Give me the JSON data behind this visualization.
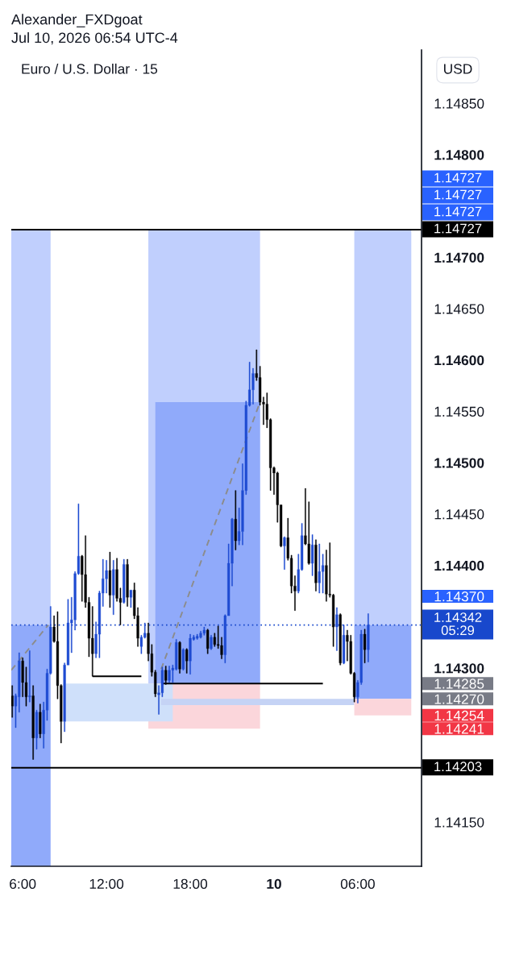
{
  "chart_data": {
    "type": "candlestick",
    "title": "Euro / U.S. Dollar · 15",
    "ylabel": "USD",
    "x": [
      "2026-07-09T05:15",
      "2026-07-09T05:30",
      "2026-07-09T05:45",
      "2026-07-09T06:00",
      "2026-07-09T06:15",
      "2026-07-09T06:30",
      "2026-07-09T06:45",
      "2026-07-09T07:00",
      "2026-07-09T07:15",
      "2026-07-09T07:30",
      "2026-07-09T07:45",
      "2026-07-09T08:00",
      "2026-07-09T08:15",
      "2026-07-09T08:30",
      "2026-07-09T08:45",
      "2026-07-09T09:00",
      "2026-07-09T09:15",
      "2026-07-09T09:30",
      "2026-07-09T09:45",
      "2026-07-09T10:00",
      "2026-07-09T10:15",
      "2026-07-09T10:30",
      "2026-07-09T10:45",
      "2026-07-09T11:00",
      "2026-07-09T11:15",
      "2026-07-09T11:30",
      "2026-07-09T11:45",
      "2026-07-09T12:00",
      "2026-07-09T12:15",
      "2026-07-09T12:30",
      "2026-07-09T12:45",
      "2026-07-09T13:00",
      "2026-07-09T13:15",
      "2026-07-09T13:30",
      "2026-07-09T13:45",
      "2026-07-09T14:00",
      "2026-07-09T14:15",
      "2026-07-09T14:30",
      "2026-07-09T14:45",
      "2026-07-09T15:00",
      "2026-07-09T15:15",
      "2026-07-09T15:30",
      "2026-07-09T15:45",
      "2026-07-09T16:00",
      "2026-07-09T16:15",
      "2026-07-09T16:30",
      "2026-07-09T16:45",
      "2026-07-09T17:00",
      "2026-07-09T17:15",
      "2026-07-09T17:30",
      "2026-07-09T17:45",
      "2026-07-09T18:00",
      "2026-07-09T18:15",
      "2026-07-09T18:30",
      "2026-07-09T18:45",
      "2026-07-09T19:00",
      "2026-07-09T19:15",
      "2026-07-09T19:30",
      "2026-07-09T19:45",
      "2026-07-09T20:00",
      "2026-07-09T20:15",
      "2026-07-09T20:30",
      "2026-07-09T20:45",
      "2026-07-09T21:00",
      "2026-07-09T21:15",
      "2026-07-09T21:30",
      "2026-07-09T21:45",
      "2026-07-09T22:00",
      "2026-07-09T22:15",
      "2026-07-09T22:30",
      "2026-07-09T22:45",
      "2026-07-09T23:00",
      "2026-07-09T23:15",
      "2026-07-09T23:30",
      "2026-07-09T23:45",
      "2026-07-10T00:00",
      "2026-07-10T00:15",
      "2026-07-10T00:30",
      "2026-07-10T00:45",
      "2026-07-10T01:00",
      "2026-07-10T01:15",
      "2026-07-10T01:30",
      "2026-07-10T01:45",
      "2026-07-10T02:00",
      "2026-07-10T02:15",
      "2026-07-10T02:30",
      "2026-07-10T02:45",
      "2026-07-10T03:00",
      "2026-07-10T03:15",
      "2026-07-10T03:30",
      "2026-07-10T03:45",
      "2026-07-10T04:00",
      "2026-07-10T04:15",
      "2026-07-10T04:30",
      "2026-07-10T04:45",
      "2026-07-10T05:00",
      "2026-07-10T05:15",
      "2026-07-10T05:30",
      "2026-07-10T05:45",
      "2026-07-10T06:00",
      "2026-07-10T06:15",
      "2026-07-10T06:30",
      "2026-07-10T06:45"
    ],
    "ohlc": [
      [
        1.14273,
        1.14283,
        1.14252,
        1.14263
      ],
      [
        1.14263,
        1.14275,
        1.14242,
        1.14273
      ],
      [
        1.14272,
        1.14315,
        1.14257,
        1.14307
      ],
      [
        1.14307,
        1.1431,
        1.14272,
        1.14286
      ],
      [
        1.14286,
        1.14301,
        1.14263,
        1.14272
      ],
      [
        1.14272,
        1.14317,
        1.14267,
        1.14273
      ],
      [
        1.14273,
        1.14283,
        1.14211,
        1.14232
      ],
      [
        1.14232,
        1.14259,
        1.14221,
        1.14257
      ],
      [
        1.14257,
        1.14265,
        1.14232,
        1.14236
      ],
      [
        1.14236,
        1.14267,
        1.14222,
        1.14259
      ],
      [
        1.14259,
        1.14299,
        1.14249,
        1.14295
      ],
      [
        1.14295,
        1.1436,
        1.14294,
        1.1434
      ],
      [
        1.1434,
        1.14351,
        1.14325,
        1.14326
      ],
      [
        1.14326,
        1.14355,
        1.1427,
        1.14283
      ],
      [
        1.14283,
        1.14284,
        1.14227,
        1.14248
      ],
      [
        1.14248,
        1.14305,
        1.14238,
        1.14303
      ],
      [
        1.14303,
        1.14367,
        1.14303,
        1.14344
      ],
      [
        1.14344,
        1.14369,
        1.14315,
        1.14347
      ],
      [
        1.14347,
        1.14394,
        1.14337,
        1.14392
      ],
      [
        1.14392,
        1.1446,
        1.14391,
        1.14409
      ],
      [
        1.14409,
        1.1441,
        1.14365,
        1.14391
      ],
      [
        1.14391,
        1.14429,
        1.14359,
        1.14364
      ],
      [
        1.14364,
        1.14369,
        1.14311,
        1.14329
      ],
      [
        1.14329,
        1.1436,
        1.14292,
        1.14314
      ],
      [
        1.14314,
        1.14345,
        1.1431,
        1.14333
      ],
      [
        1.14333,
        1.14375,
        1.1431,
        1.14373
      ],
      [
        1.14373,
        1.14406,
        1.1436,
        1.14387
      ],
      [
        1.14387,
        1.14405,
        1.14373,
        1.14395
      ],
      [
        1.14395,
        1.14413,
        1.14359,
        1.14371
      ],
      [
        1.14371,
        1.14405,
        1.14352,
        1.14396
      ],
      [
        1.14396,
        1.14407,
        1.14365,
        1.14368
      ],
      [
        1.14368,
        1.14378,
        1.14342,
        1.14364
      ],
      [
        1.14364,
        1.14406,
        1.14363,
        1.14401
      ],
      [
        1.14401,
        1.14406,
        1.1436,
        1.14369
      ],
      [
        1.14369,
        1.14376,
        1.14359,
        1.14376
      ],
      [
        1.14376,
        1.14383,
        1.14348,
        1.14351
      ],
      [
        1.14351,
        1.14359,
        1.14321,
        1.14329
      ],
      [
        1.14321,
        1.14332,
        1.14314,
        1.1433
      ],
      [
        1.1433,
        1.14344,
        1.14329,
        1.14334
      ],
      [
        1.14334,
        1.14344,
        1.14307,
        1.14314
      ],
      [
        1.14314,
        1.14323,
        1.14292,
        1.14296
      ],
      [
        1.14296,
        1.14298,
        1.14272,
        1.14275
      ],
      [
        1.14274,
        1.14283,
        1.14255,
        1.14276
      ],
      [
        1.14276,
        1.14301,
        1.14272,
        1.14298
      ],
      [
        1.14298,
        1.14302,
        1.14284,
        1.14288
      ],
      [
        1.14288,
        1.14302,
        1.14286,
        1.14298
      ],
      [
        1.14298,
        1.14303,
        1.14286,
        1.143
      ],
      [
        1.14299,
        1.14328,
        1.14298,
        1.14325
      ],
      [
        1.14325,
        1.14326,
        1.14295,
        1.14299
      ],
      [
        1.14299,
        1.14319,
        1.14298,
        1.14318
      ],
      [
        1.14318,
        1.14319,
        1.14295,
        1.14307
      ],
      [
        1.14307,
        1.14333,
        1.14294,
        1.14329
      ],
      [
        1.14328,
        1.14332,
        1.14327,
        1.1433
      ],
      [
        1.14329,
        1.14333,
        1.14328,
        1.14331
      ],
      [
        1.1433,
        1.14336,
        1.14329,
        1.14334
      ],
      [
        1.14334,
        1.1434,
        1.14332,
        1.14337
      ],
      [
        1.14337,
        1.14338,
        1.14314,
        1.14319
      ],
      [
        1.14319,
        1.14332,
        1.14318,
        1.1433
      ],
      [
        1.1433,
        1.14334,
        1.14321,
        1.14323
      ],
      [
        1.14323,
        1.14341,
        1.14319,
        1.14322
      ],
      [
        1.14322,
        1.1433,
        1.14309,
        1.14313
      ],
      [
        1.14313,
        1.14352,
        1.14305,
        1.14351
      ],
      [
        1.14351,
        1.14421,
        1.14351,
        1.14402
      ],
      [
        1.14402,
        1.14446,
        1.1438,
        1.14445
      ],
      [
        1.14445,
        1.14473,
        1.14415,
        1.14424
      ],
      [
        1.14424,
        1.14456,
        1.1442,
        1.14433
      ],
      [
        1.14433,
        1.14499,
        1.1442,
        1.14473
      ],
      [
        1.14473,
        1.1456,
        1.14469,
        1.14556
      ],
      [
        1.14556,
        1.14598,
        1.14555,
        1.14571
      ],
      [
        1.14571,
        1.14592,
        1.14557,
        1.14587
      ],
      [
        1.14587,
        1.1461,
        1.1458,
        1.14583
      ],
      [
        1.14583,
        1.14594,
        1.14556,
        1.14559
      ],
      [
        1.14559,
        1.14564,
        1.14537,
        1.14557
      ],
      [
        1.14557,
        1.14568,
        1.14534,
        1.14542
      ],
      [
        1.14542,
        1.14543,
        1.14473,
        1.14495
      ],
      [
        1.14495,
        1.14496,
        1.14469,
        1.1449
      ],
      [
        1.1449,
        1.14491,
        1.14442,
        1.14459
      ],
      [
        1.14459,
        1.14459,
        1.14418,
        1.14419
      ],
      [
        1.14419,
        1.14428,
        1.14396,
        1.14427
      ],
      [
        1.14427,
        1.14446,
        1.14405,
        1.14407
      ],
      [
        1.14407,
        1.1441,
        1.14373,
        1.1438
      ],
      [
        1.1438,
        1.1439,
        1.14356,
        1.14375
      ],
      [
        1.14375,
        1.14411,
        1.14373,
        1.14396
      ],
      [
        1.14396,
        1.14441,
        1.14395,
        1.14429
      ],
      [
        1.14429,
        1.14475,
        1.1442,
        1.14421
      ],
      [
        1.14421,
        1.14462,
        1.14401,
        1.14402
      ],
      [
        1.14402,
        1.1443,
        1.1439,
        1.1442
      ],
      [
        1.1442,
        1.14425,
        1.14375,
        1.14383
      ],
      [
        1.14383,
        1.14421,
        1.14373,
        1.14394
      ],
      [
        1.14394,
        1.14411,
        1.14373,
        1.144
      ],
      [
        1.144,
        1.14415,
        1.14365,
        1.14372
      ],
      [
        1.14372,
        1.14422,
        1.14369,
        1.14371
      ],
      [
        1.14371,
        1.14372,
        1.14321,
        1.1434
      ],
      [
        1.1434,
        1.14359,
        1.14317,
        1.14352
      ],
      [
        1.14352,
        1.14353,
        1.14303,
        1.14305
      ],
      [
        1.14305,
        1.14342,
        1.14304,
        1.14332
      ],
      [
        1.14332,
        1.14337,
        1.14307,
        1.14326
      ],
      [
        1.14326,
        1.14332,
        1.14294,
        1.14295
      ],
      [
        1.14295,
        1.14296,
        1.14267,
        1.14272
      ],
      [
        1.14272,
        1.14288,
        1.14266,
        1.14286
      ],
      [
        1.14286,
        1.14337,
        1.14284,
        1.14333
      ],
      [
        1.14333,
        1.14338,
        1.14305,
        1.14318
      ],
      [
        1.14318,
        1.14353,
        1.14306,
        1.14342
      ]
    ],
    "colors": [
      "#000000",
      "#1e4bd2",
      "#1e4bd2",
      "#000000",
      "#000000",
      "#1e4bd2",
      "#000000",
      "#1e4bd2",
      "#000000",
      "#1e4bd2",
      "#1e4bd2",
      "#1e4bd2",
      "#000000",
      "#000000",
      "#000000",
      "#1e4bd2",
      "#1e4bd2",
      "#1e4bd2",
      "#1e4bd2",
      "#1e4bd2",
      "#000000",
      "#000000",
      "#000000",
      "#000000",
      "#1e4bd2",
      "#1e4bd2",
      "#1e4bd2",
      "#1e4bd2",
      "#000000",
      "#1e4bd2",
      "#000000",
      "#000000",
      "#1e4bd2",
      "#000000",
      "#1e4bd2",
      "#000000",
      "#000000",
      "#1e4bd2",
      "#1e4bd2",
      "#000000",
      "#000000",
      "#000000",
      "#1e4bd2",
      "#1e4bd2",
      "#000000",
      "#1e4bd2",
      "#1e4bd2",
      "#1e4bd2",
      "#000000",
      "#1e4bd2",
      "#000000",
      "#1e4bd2",
      "#1e4bd2",
      "#1e4bd2",
      "#1e4bd2",
      "#1e4bd2",
      "#000000",
      "#1e4bd2",
      "#000000",
      "#000000",
      "#000000",
      "#1e4bd2",
      "#1e4bd2",
      "#1e4bd2",
      "#000000",
      "#1e4bd2",
      "#1e4bd2",
      "#1e4bd2",
      "#1e4bd2",
      "#1e4bd2",
      "#000000",
      "#000000",
      "#000000",
      "#000000",
      "#000000",
      "#000000",
      "#000000",
      "#000000",
      "#1e4bd2",
      "#000000",
      "#000000",
      "#000000",
      "#1e4bd2",
      "#1e4bd2",
      "#000000",
      "#000000",
      "#1e4bd2",
      "#000000",
      "#1e4bd2",
      "#1e4bd2",
      "#000000",
      "#000000",
      "#000000",
      "#1e4bd2",
      "#000000",
      "#1e4bd2",
      "#000000",
      "#000000",
      "#000000",
      "#1e4bd2",
      "#1e4bd2",
      "#000000",
      "#1e4bd2"
    ],
    "series": [
      {
        "type": "line",
        "x": [
          "2026-07-09T05:11",
          "2026-07-09T08:00"
        ],
        "values": [
          null,
          null
        ],
        "upper": [
          1.14727,
          1.14727
        ],
        "lower": [
          1.14342,
          1.14342
        ],
        "color": "#c0cffd"
      },
      {
        "type": "line",
        "x": [
          "2026-07-09T05:11",
          "2026-07-09T08:00"
        ],
        "values": [
          null,
          null
        ],
        "upper": [
          1.14342,
          1.14342
        ],
        "lower": [
          1.14107,
          1.14107
        ],
        "color": "#90aafa"
      },
      {
        "type": "line",
        "x": [
          "2026-07-09T15:00",
          "2026-07-09T23:00"
        ],
        "values": [
          null,
          null
        ],
        "upper": [
          1.14727,
          1.14727
        ],
        "lower": [
          1.14285,
          1.14285
        ],
        "color": "#c0cffd"
      },
      {
        "type": "line",
        "x": [
          "2026-07-09T15:30",
          "2026-07-09T23:00"
        ],
        "values": [
          null,
          null
        ],
        "upper": [
          1.14559,
          1.14559
        ],
        "lower": [
          1.14285,
          1.14285
        ],
        "color": "#90aafa"
      },
      {
        "type": "line",
        "x": [
          "2026-07-09T15:00",
          "2026-07-09T23:00"
        ],
        "values": [
          null,
          null
        ],
        "upper": [
          1.14285,
          1.14285
        ],
        "lower": [
          1.14241,
          1.14241
        ],
        "color": "#fbd6db"
      },
      {
        "type": "line",
        "x": [
          "2026-07-09T09:05",
          "2026-07-09T16:45"
        ],
        "values": [
          null,
          null
        ],
        "upper": [
          1.14285,
          1.14285
        ],
        "lower": [
          1.14248,
          1.14248
        ],
        "color": "#cfe0fa"
      },
      {
        "type": "line",
        "x": [
          "2026-07-09T15:55",
          "2026-07-10T05:45"
        ],
        "values": [
          null,
          null
        ],
        "upper": [
          1.1427,
          1.1427
        ],
        "lower": [
          1.14264,
          1.14264
        ],
        "color": "#c5d3f5"
      },
      {
        "type": "line",
        "x": [
          "2026-07-10T05:45",
          "2026-07-10T09:50"
        ],
        "values": [
          null,
          null
        ],
        "upper": [
          1.14727,
          1.14727
        ],
        "lower": [
          1.14342,
          1.14342
        ],
        "color": "#c0cffd"
      },
      {
        "type": "line",
        "x": [
          "2026-07-10T05:45",
          "2026-07-10T09:50"
        ],
        "values": [
          null,
          null
        ],
        "upper": [
          1.14342,
          1.14342
        ],
        "lower": [
          1.1427,
          1.1427
        ],
        "color": "#90aafa"
      },
      {
        "type": "line",
        "x": [
          "2026-07-10T05:45",
          "2026-07-10T09:50"
        ],
        "values": [
          null,
          null
        ],
        "upper": [
          1.1427,
          1.1427
        ],
        "lower": [
          1.14254,
          1.14254
        ],
        "color": "#fbd6db"
      },
      {
        "type": "line",
        "x": [
          "2026-07-09T11:00",
          "2026-07-09T14:30"
        ],
        "values": [
          1.14292,
          1.14292
        ],
        "color": "#000000"
      },
      {
        "type": "line",
        "x": [
          "2026-07-09T16:00",
          "2026-07-10T03:30"
        ],
        "values": [
          1.14285,
          1.14285
        ],
        "color": "#000000"
      },
      {
        "type": "line",
        "x": [
          "2026-07-09T05:11",
          "2026-07-09T07:50"
        ],
        "values": [
          1.14298,
          1.14342
        ],
        "color": "#8c8c8c",
        "line_style": "dashed"
      },
      {
        "type": "line",
        "x": [
          "2026-07-09T15:55",
          "2026-07-09T23:00"
        ],
        "values": [
          1.14299,
          1.14559
        ],
        "color": "#8c8c8c",
        "line_style": "dashed"
      }
    ],
    "ref_lines": [
      {
        "axis": "y",
        "value": 1.14727,
        "label": "1.14727",
        "color": "#000000",
        "line_style": "solid"
      },
      {
        "axis": "y",
        "value": 1.14342,
        "label": "1.14342\n05:29",
        "color": "#1848cc",
        "line_style": "dotted"
      },
      {
        "axis": "y",
        "value": 1.14203,
        "label": "1.14203",
        "color": "#000000",
        "line_style": "solid"
      }
    ],
    "annotations": [
      "Alexander_FXDgoat\nJul 10, 2026 06:54 UTC-4",
      "1.14727",
      "1.14727",
      "1.14727"
    ],
    "xlim": [
      "2026-07-09T05:11",
      "2026-07-10T10:34"
    ],
    "ylim": [
      1.14107,
      1.14902
    ],
    "xticks": [
      {
        "value": "2026-07-09T06:00",
        "label": "6:00"
      },
      {
        "value": "2026-07-09T12:00",
        "label": "12:00"
      },
      {
        "value": "2026-07-09T18:00",
        "label": "18:00"
      },
      {
        "value": "2026-07-10T00:00",
        "label": "10"
      },
      {
        "value": "2026-07-10T06:00",
        "label": "06:00"
      }
    ],
    "yticks": [
      {
        "value": 1.1415,
        "label": "1.14150"
      },
      {
        "value": 1.14241,
        "label": "1.14241"
      },
      {
        "value": 1.14254,
        "label": "1.14254"
      },
      {
        "value": 1.1427,
        "label": "1.14270"
      },
      {
        "value": 1.14285,
        "label": "1.14285"
      },
      {
        "value": 1.143,
        "label": "1.14300"
      },
      {
        "value": 1.1437,
        "label": "1.14370"
      },
      {
        "value": 1.144,
        "label": "1.14400"
      },
      {
        "value": 1.1445,
        "label": "1.14450"
      },
      {
        "value": 1.145,
        "label": "1.14500"
      },
      {
        "value": 1.1455,
        "label": "1.14550"
      },
      {
        "value": 1.146,
        "label": "1.14600"
      },
      {
        "value": 1.1465,
        "label": "1.14650"
      },
      {
        "value": 1.147,
        "label": "1.14700"
      },
      {
        "value": 1.148,
        "label": "1.14800"
      },
      {
        "value": 1.1485,
        "label": "1.14850"
      }
    ]
  }
}
